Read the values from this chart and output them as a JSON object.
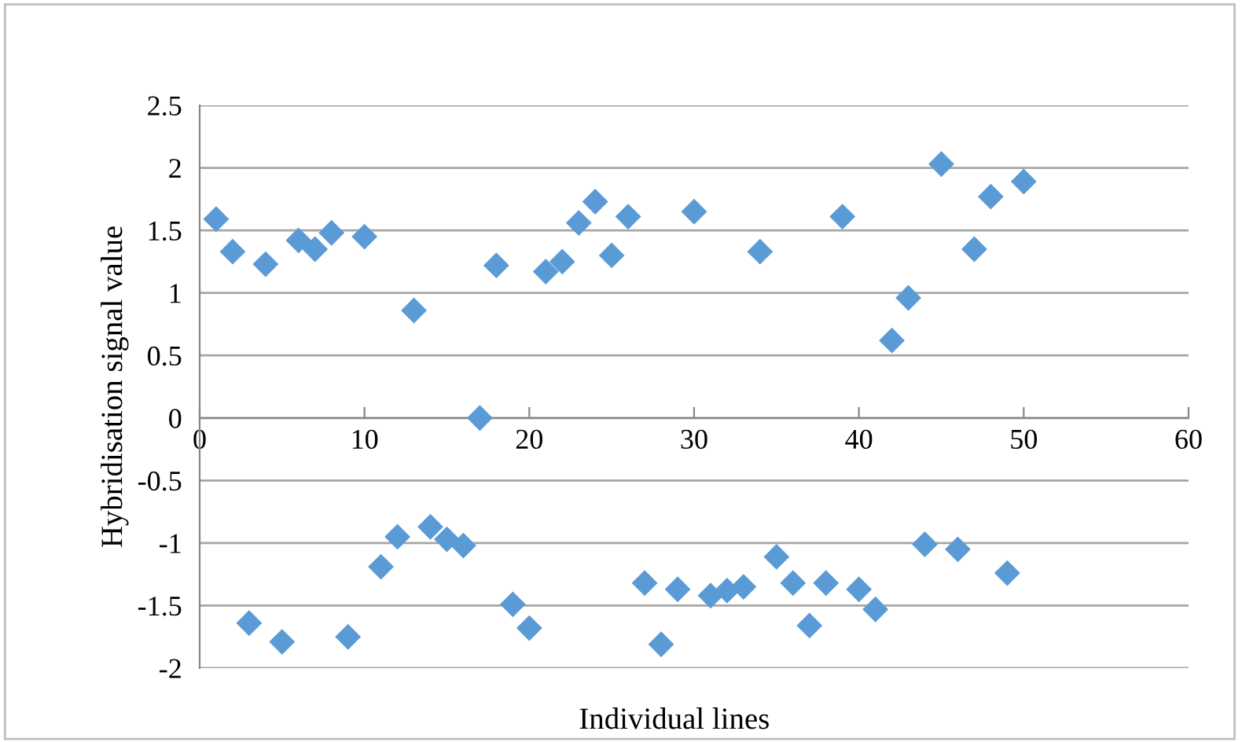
{
  "chart_data": {
    "type": "scatter",
    "xlabel": "Individual lines",
    "ylabel": "Hybridisation signal value",
    "x": [
      1,
      2,
      3,
      4,
      5,
      6,
      7,
      8,
      9,
      10,
      11,
      12,
      13,
      14,
      15,
      16,
      17,
      18,
      19,
      20,
      21,
      22,
      23,
      24,
      25,
      26,
      27,
      28,
      29,
      30,
      31,
      32,
      33,
      34,
      35,
      36,
      37,
      38,
      39,
      40,
      41,
      42,
      43,
      44,
      45,
      46,
      47,
      48,
      49,
      50
    ],
    "series": [
      {
        "color": "#5b9bd5",
        "values": [
          1.59,
          1.33,
          -1.64,
          1.23,
          -1.79,
          1.42,
          1.35,
          1.48,
          -1.75,
          1.45,
          -1.19,
          -0.95,
          0.86,
          -0.87,
          -0.97,
          -1.02,
          0.0,
          1.22,
          -1.49,
          -1.68,
          1.17,
          1.25,
          1.56,
          1.73,
          1.3,
          1.61,
          -1.32,
          -1.81,
          -1.37,
          1.65,
          -1.42,
          -1.38,
          -1.35,
          1.33,
          -1.11,
          -1.32,
          -1.66,
          -1.32,
          1.61,
          -1.37,
          -1.53,
          0.62,
          0.96,
          -1.01,
          2.03,
          -1.05,
          1.35,
          1.77,
          -1.24,
          1.89
        ]
      }
    ],
    "xlim": [
      0,
      60
    ],
    "xticks": [
      0,
      10,
      20,
      30,
      40,
      50,
      60
    ],
    "ylim": [
      -2,
      2.5
    ],
    "yticks": [
      -2,
      -1.5,
      -1,
      -0.5,
      0,
      0.5,
      1,
      1.5,
      2,
      2.5
    ],
    "grid": "y",
    "marker": "diamond",
    "legend": false
  }
}
